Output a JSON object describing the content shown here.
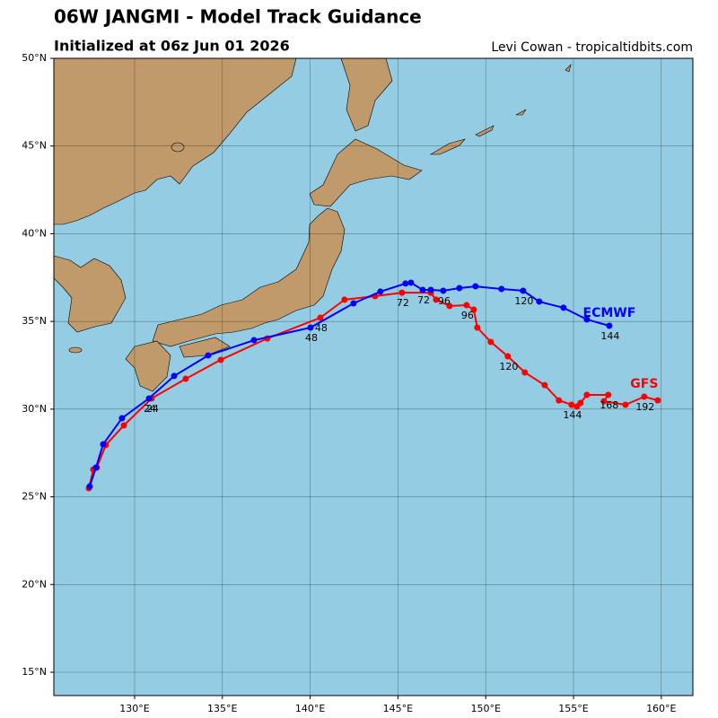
{
  "chart_data": {
    "type": "track",
    "title": "06W JANGMI - Model Track Guidance",
    "subtitle": "Initialized at 06z Jun 01 2026",
    "credit": "Levi Cowan - tropicaltidbits.com",
    "xlim": [
      125.4,
      161.8
    ],
    "ylim": [
      13.67,
      50
    ],
    "xticks": [
      {
        "value": 130,
        "label": "130°E"
      },
      {
        "value": 135,
        "label": "135°E"
      },
      {
        "value": 140,
        "label": "140°E"
      },
      {
        "value": 145,
        "label": "145°E"
      },
      {
        "value": 150,
        "label": "150°E"
      },
      {
        "value": 155,
        "label": "155°E"
      },
      {
        "value": 160,
        "label": "160°E"
      }
    ],
    "yticks": [
      {
        "value": 15,
        "label": "15°N"
      },
      {
        "value": 20,
        "label": "20°N"
      },
      {
        "value": 25,
        "label": "25°N"
      },
      {
        "value": 30,
        "label": "30°N"
      },
      {
        "value": 35,
        "label": "35°N"
      },
      {
        "value": 40,
        "label": "40°N"
      },
      {
        "value": 45,
        "label": "45°N"
      },
      {
        "value": 50,
        "label": "50°N"
      }
    ],
    "grid": true,
    "series": [
      {
        "name": "GFS",
        "color": "#ff0000",
        "x": [
          127.39,
          127.65,
          127.85,
          128.36,
          129.39,
          130.97,
          132.91,
          134.91,
          137.56,
          140.58,
          141.96,
          143.7,
          145.23,
          146.87,
          147.17,
          147.94,
          148.91,
          149.32,
          149.52,
          150.29,
          151.26,
          152.23,
          153.36,
          154.17,
          154.89,
          155.2,
          155.4,
          155.76,
          156.98,
          156.73,
          157.96,
          159.03,
          159.8
        ],
        "values": [
          25.49,
          26.56,
          26.67,
          27.95,
          29.07,
          30.61,
          31.73,
          32.81,
          34.03,
          35.21,
          36.24,
          36.44,
          36.64,
          36.64,
          36.24,
          35.88,
          35.93,
          35.67,
          34.65,
          33.83,
          33.01,
          32.09,
          31.37,
          30.5,
          30.25,
          30.15,
          30.35,
          30.81,
          30.81,
          30.45,
          30.25,
          30.71,
          30.5
        ],
        "labels": [
          null,
          null,
          null,
          null,
          null,
          24,
          null,
          null,
          null,
          48,
          null,
          null,
          72,
          null,
          null,
          null,
          96,
          null,
          null,
          null,
          120,
          null,
          null,
          null,
          144,
          null,
          null,
          null,
          168,
          null,
          null,
          192,
          null
        ]
      },
      {
        "name": "ECMWF",
        "color": "#0000ff",
        "x": [
          127.44,
          127.8,
          128.21,
          129.28,
          130.82,
          132.25,
          134.19,
          136.8,
          140.02,
          142.47,
          144.0,
          145.43,
          145.74,
          146.41,
          146.87,
          147.58,
          148.5,
          149.42,
          150.9,
          152.13,
          153.05,
          154.43,
          155.76,
          157.04
        ],
        "values": [
          25.59,
          26.67,
          28.0,
          29.48,
          30.61,
          31.89,
          33.06,
          33.93,
          34.65,
          36.03,
          36.7,
          37.16,
          37.21,
          36.8,
          36.8,
          36.75,
          36.9,
          37.0,
          36.85,
          36.75,
          36.13,
          35.78,
          35.11,
          34.75
        ],
        "labels": [
          null,
          null,
          null,
          null,
          24,
          null,
          null,
          null,
          48,
          null,
          null,
          null,
          null,
          72,
          null,
          96,
          null,
          null,
          null,
          120,
          null,
          null,
          null,
          144
        ]
      }
    ]
  }
}
